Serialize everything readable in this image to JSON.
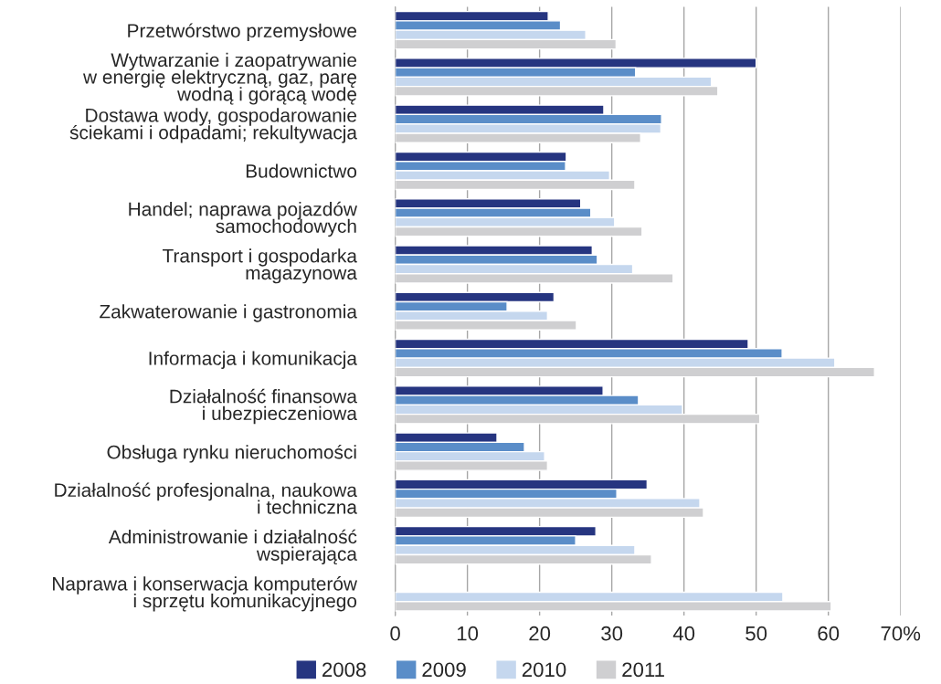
{
  "chart_data": {
    "type": "bar",
    "orientation": "horizontal",
    "categories": [
      "Przetwórstwo przemysłowe",
      "Wytwarzanie i zaopatrywanie\nw energię elektryczną, gaz, parę\nwodną i gorącą wodę",
      "Dostawa wody, gospodarowanie\nściekami i odpadami; rekultywacja",
      "Budownictwo",
      "Handel; naprawa pojazdów\nsamochodowych",
      "Transport i gospodarka\nmagazynowa",
      "Zakwaterowanie i gastronomia",
      "Informacja i komunikacja",
      "Działalność finansowa\ni ubezpieczeniowa",
      "Obsługa rynku nieruchomości",
      "Działalność profesjonalna, naukowa\ni techniczna",
      "Administrowanie i działalność\nwspierająca",
      "Naprawa i konserwacja komputerów\ni sprzętu komunikacyjnego"
    ],
    "series": [
      {
        "name": "2008",
        "color": "#263580",
        "values": [
          21.2,
          50.0,
          28.9,
          23.7,
          25.7,
          27.3,
          22.0,
          48.9,
          28.8,
          14.1,
          34.9,
          27.8,
          null
        ]
      },
      {
        "name": "2009",
        "color": "#5a8dc8",
        "values": [
          22.9,
          33.3,
          36.9,
          23.6,
          27.1,
          28.0,
          15.5,
          53.6,
          33.7,
          17.9,
          30.7,
          25.0,
          null
        ]
      },
      {
        "name": "2010",
        "color": "#c5d7ee",
        "values": [
          26.4,
          43.8,
          36.8,
          29.7,
          30.4,
          32.9,
          21.1,
          60.9,
          39.8,
          20.7,
          42.2,
          33.2,
          53.7
        ]
      },
      {
        "name": "2011",
        "color": "#cfcfd1",
        "values": [
          30.6,
          44.7,
          34.0,
          33.2,
          34.2,
          38.5,
          25.1,
          66.4,
          50.5,
          21.1,
          42.7,
          35.5,
          60.4
        ]
      }
    ],
    "xlim": [
      0,
      70
    ],
    "xticks": [
      0,
      10,
      20,
      30,
      40,
      50,
      60,
      {
        "value": 70,
        "label": "70%"
      }
    ],
    "grid": "x",
    "legend": "bottom"
  }
}
